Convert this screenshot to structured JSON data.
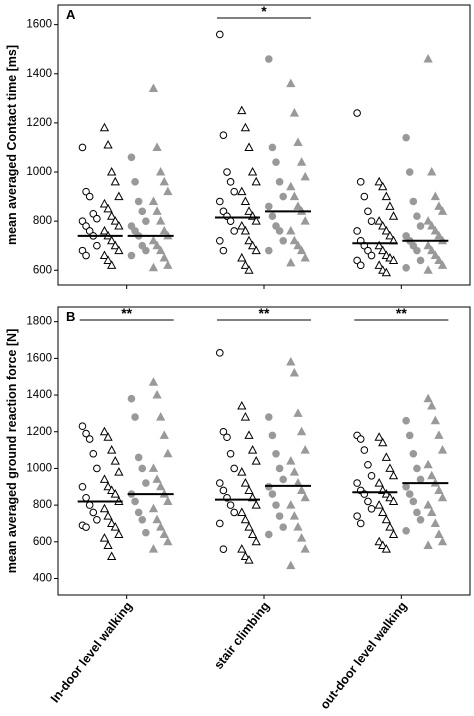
{
  "chart_data": [
    {
      "type": "strip",
      "panel": "A",
      "y_label": "mean averaged Contact time [ms]",
      "ylim": [
        540,
        1680
      ],
      "yticks": [
        600,
        800,
        1000,
        1200,
        1400,
        1600
      ],
      "significance": [
        null,
        "*",
        null
      ],
      "series": [
        {
          "marker": "circle",
          "filled": false,
          "color": "#000000",
          "values": [
            [
              1100,
              920,
              900,
              830,
              810,
              800,
              780,
              760,
              740,
              700,
              680,
              660
            ],
            [
              1560,
              1150,
              1000,
              960,
              920,
              880,
              840,
              820,
              800,
              760,
              720,
              680
            ],
            [
              1240,
              960,
              900,
              840,
              800,
              760,
              720,
              700,
              680,
              660,
              640,
              620
            ]
          ]
        },
        {
          "marker": "triangle",
          "filled": false,
          "color": "#000000",
          "values": [
            [
              1180,
              1110,
              1000,
              960,
              900,
              870,
              850,
              820,
              800,
              780,
              760,
              740,
              720,
              700,
              680,
              660,
              640,
              620
            ],
            [
              1250,
              1180,
              1100,
              1000,
              960,
              920,
              880,
              840,
              820,
              800,
              780,
              760,
              720,
              700,
              680,
              650,
              620,
              600
            ],
            [
              960,
              940,
              900,
              860,
              820,
              800,
              780,
              760,
              740,
              720,
              700,
              680,
              660,
              650,
              640,
              620,
              600,
              590
            ]
          ]
        },
        {
          "marker": "circle",
          "filled": true,
          "color": "#999999",
          "values": [
            [
              1060,
              960,
              880,
              840,
              800,
              780,
              760,
              740,
              700,
              680,
              660
            ],
            [
              1460,
              1100,
              1040,
              960,
              900,
              860,
              820,
              780,
              760,
              720,
              680
            ],
            [
              1140,
              1000,
              880,
              820,
              780,
              740,
              720,
              700,
              680,
              640,
              610
            ]
          ]
        },
        {
          "marker": "triangle",
          "filled": true,
          "color": "#999999",
          "values": [
            [
              1340,
              1100,
              1000,
              960,
              920,
              880,
              840,
              800,
              760,
              740,
              720,
              700,
              680,
              650,
              620,
              610
            ],
            [
              1360,
              1240,
              1120,
              1040,
              980,
              940,
              900,
              860,
              840,
              800,
              760,
              720,
              700,
              680,
              650,
              630
            ],
            [
              1460,
              1000,
              900,
              860,
              840,
              800,
              780,
              760,
              740,
              720,
              700,
              680,
              660,
              640,
              620,
              600
            ]
          ]
        }
      ],
      "medians": [
        [
          740,
          740
        ],
        [
          815,
          840
        ],
        [
          710,
          720
        ]
      ]
    },
    {
      "type": "strip",
      "panel": "B",
      "y_label": "mean averaged ground reaction force [N]",
      "categories": [
        "In-door level walking",
        "stair climbing",
        "out-door level walking"
      ],
      "ylim": [
        310,
        1880
      ],
      "yticks": [
        400,
        600,
        800,
        1000,
        1200,
        1400,
        1600,
        1800
      ],
      "significance": [
        "**",
        "**",
        "**"
      ],
      "series": [
        {
          "marker": "circle",
          "filled": false,
          "color": "#000000",
          "values": [
            [
              1230,
              1190,
              1160,
              1080,
              1000,
              900,
              840,
              800,
              760,
              720,
              690,
              680
            ],
            [
              1630,
              1200,
              1170,
              1080,
              1000,
              920,
              880,
              840,
              800,
              760,
              700,
              560
            ],
            [
              1180,
              1160,
              1100,
              1020,
              960,
              920,
              880,
              860,
              820,
              780,
              740,
              700
            ]
          ]
        },
        {
          "marker": "triangle",
          "filled": false,
          "color": "#000000",
          "values": [
            [
              1200,
              1170,
              1100,
              1040,
              980,
              940,
              900,
              880,
              860,
              820,
              780,
              740,
              700,
              680,
              640,
              620,
              580,
              520
            ],
            [
              1340,
              1280,
              1180,
              1100,
              1040,
              980,
              920,
              880,
              840,
              800,
              760,
              720,
              680,
              640,
              600,
              560,
              520,
              500
            ],
            [
              1170,
              1140,
              1060,
              1000,
              960,
              920,
              880,
              860,
              840,
              820,
              800,
              760,
              720,
              680,
              640,
              600,
              580,
              560
            ]
          ]
        },
        {
          "marker": "circle",
          "filled": true,
          "color": "#999999",
          "values": [
            [
              1380,
              1280,
              1060,
              1000,
              920,
              860,
              820,
              760,
              720,
              650
            ],
            [
              1280,
              1180,
              1080,
              1000,
              940,
              900,
              860,
              800,
              740,
              680,
              640
            ],
            [
              1260,
              1180,
              1080,
              1000,
              940,
              900,
              860,
              820,
              760,
              720,
              660
            ]
          ]
        },
        {
          "marker": "triangle",
          "filled": true,
          "color": "#999999",
          "values": [
            [
              1470,
              1400,
              1280,
              1180,
              1080,
              1000,
              940,
              900,
              860,
              820,
              780,
              720,
              680,
              640,
              600,
              560
            ],
            [
              1580,
              1520,
              1300,
              1200,
              1100,
              1040,
              980,
              920,
              880,
              840,
              800,
              740,
              680,
              620,
              560,
              470
            ],
            [
              1380,
              1340,
              1260,
              1180,
              1100,
              1020,
              960,
              920,
              880,
              840,
              800,
              760,
              700,
              640,
              600,
              580
            ]
          ]
        }
      ],
      "medians": [
        [
          820,
          860
        ],
        [
          830,
          905
        ],
        [
          870,
          920
        ]
      ]
    }
  ]
}
